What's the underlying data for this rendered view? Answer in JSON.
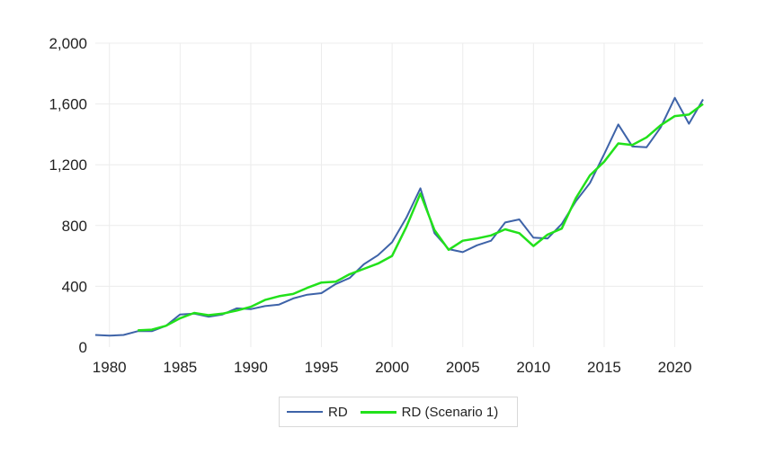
{
  "chart_data": {
    "type": "line",
    "title": "",
    "xlabel": "",
    "ylabel": "",
    "xlim": [
      1979,
      2022
    ],
    "ylim": [
      0,
      2000
    ],
    "y_ticks": [
      0,
      400,
      800,
      1200,
      1600,
      2000
    ],
    "y_tick_labels": [
      "0",
      "400",
      "800",
      "1,200",
      "1,600",
      "2,000"
    ],
    "x_ticks": [
      1980,
      1985,
      1990,
      1995,
      2000,
      2005,
      2010,
      2015,
      2020
    ],
    "x_tick_labels": [
      "1980",
      "1985",
      "1990",
      "1995",
      "2000",
      "2005",
      "2010",
      "2015",
      "2020"
    ],
    "grid": true,
    "legend_position": "bottom",
    "x": [
      1979,
      1980,
      1981,
      1982,
      1983,
      1984,
      1985,
      1986,
      1987,
      1988,
      1989,
      1990,
      1991,
      1992,
      1993,
      1994,
      1995,
      1996,
      1997,
      1998,
      1999,
      2000,
      2001,
      2002,
      2003,
      2004,
      2005,
      2006,
      2007,
      2008,
      2009,
      2010,
      2011,
      2012,
      2013,
      2014,
      2015,
      2016,
      2017,
      2018,
      2019,
      2020,
      2021,
      2022
    ],
    "series": [
      {
        "name": "RD",
        "color": "#3e63a8",
        "values": [
          80,
          75,
          80,
          105,
          105,
          140,
          215,
          220,
          200,
          215,
          255,
          250,
          270,
          280,
          320,
          345,
          355,
          415,
          455,
          545,
          605,
          690,
          850,
          1045,
          750,
          645,
          625,
          670,
          700,
          820,
          840,
          720,
          715,
          810,
          960,
          1080,
          1270,
          1465,
          1320,
          1315,
          1445,
          1640,
          1470,
          1630
        ]
      },
      {
        "name": "RD (Scenario 1)",
        "color": "#22e11b",
        "values": [
          null,
          null,
          null,
          110,
          115,
          140,
          190,
          225,
          210,
          220,
          240,
          265,
          310,
          335,
          350,
          390,
          425,
          430,
          480,
          515,
          550,
          600,
          790,
          1010,
          770,
          640,
          700,
          715,
          735,
          775,
          750,
          665,
          740,
          780,
          980,
          1130,
          1220,
          1340,
          1330,
          1380,
          1460,
          1520,
          1530,
          1600
        ]
      }
    ]
  },
  "legend": {
    "items": [
      "RD",
      "RD (Scenario 1)"
    ]
  }
}
